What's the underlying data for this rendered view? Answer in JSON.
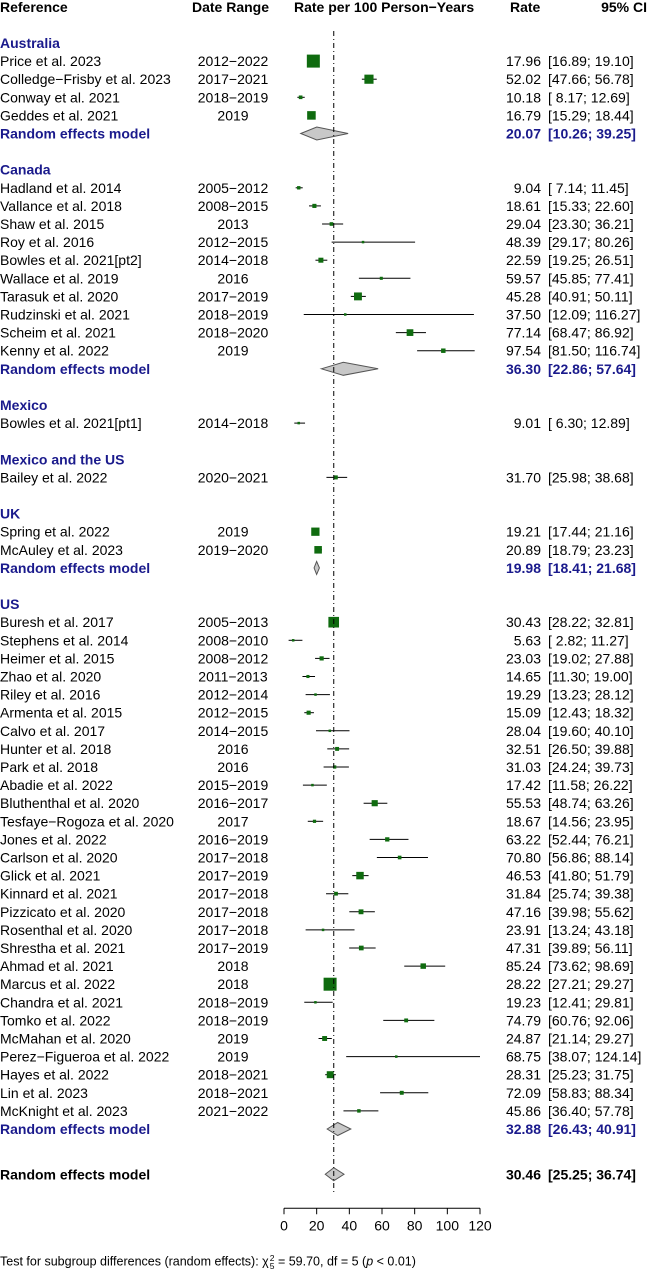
{
  "headers": {
    "reference": "Reference",
    "date_range": "Date Range",
    "rate_label": "Rate per 100 Person−Years",
    "rate": "Rate",
    "ci": "95% CI"
  },
  "chart_data": {
    "type": "forest",
    "xlim": [
      0,
      120
    ],
    "xticks": [
      "0",
      "20",
      "40",
      "60",
      "80",
      "100",
      "120"
    ],
    "reference_line": 30.46,
    "groups": [
      {
        "name": "Australia",
        "studies": [
          {
            "ref": "Price et al. 2023",
            "dates": "2012−2022",
            "rate": 17.96,
            "lo": 16.89,
            "hi": 19.1,
            "rate_text": "17.96",
            "ci_text": "[16.89; 19.10]"
          },
          {
            "ref": "Colledge−Frisby et al. 2023",
            "dates": "2017−2021",
            "rate": 52.02,
            "lo": 47.66,
            "hi": 56.78,
            "rate_text": "52.02",
            "ci_text": "[47.66; 56.78]"
          },
          {
            "ref": "Conway et al. 2021",
            "dates": "2018−2019",
            "rate": 10.18,
            "lo": 8.17,
            "hi": 12.69,
            "rate_text": "10.18",
            "ci_text": "[ 8.17; 12.69]"
          },
          {
            "ref": "Geddes et al. 2021",
            "dates": "2019",
            "rate": 16.79,
            "lo": 15.29,
            "hi": 18.44,
            "rate_text": "16.79",
            "ci_text": "[15.29; 18.44]"
          }
        ],
        "summary": {
          "label": "Random effects model",
          "rate": 20.07,
          "lo": 10.26,
          "hi": 39.25,
          "rate_text": "20.07",
          "ci_text": "[10.26; 39.25]"
        }
      },
      {
        "name": "Canada",
        "studies": [
          {
            "ref": "Hadland et al. 2014",
            "dates": "2005−2012",
            "rate": 9.04,
            "lo": 7.14,
            "hi": 11.45,
            "rate_text": "9.04",
            "ci_text": "[ 7.14; 11.45]"
          },
          {
            "ref": "Vallance et al. 2018",
            "dates": "2008−2015",
            "rate": 18.61,
            "lo": 15.33,
            "hi": 22.6,
            "rate_text": "18.61",
            "ci_text": "[15.33; 22.60]"
          },
          {
            "ref": "Shaw et al. 2015",
            "dates": "2013",
            "rate": 29.04,
            "lo": 23.3,
            "hi": 36.21,
            "rate_text": "29.04",
            "ci_text": "[23.30; 36.21]"
          },
          {
            "ref": "Roy et al. 2016",
            "dates": "2012−2015",
            "rate": 48.39,
            "lo": 29.17,
            "hi": 80.26,
            "rate_text": "48.39",
            "ci_text": "[29.17; 80.26]"
          },
          {
            "ref": "Bowles et al. 2021[pt2]",
            "dates": "2014−2018",
            "rate": 22.59,
            "lo": 19.25,
            "hi": 26.51,
            "rate_text": "22.59",
            "ci_text": "[19.25; 26.51]"
          },
          {
            "ref": "Wallace et al. 2019",
            "dates": "2016",
            "rate": 59.57,
            "lo": 45.85,
            "hi": 77.41,
            "rate_text": "59.57",
            "ci_text": "[45.85; 77.41]"
          },
          {
            "ref": "Tarasuk et al. 2020",
            "dates": "2017−2019",
            "rate": 45.28,
            "lo": 40.91,
            "hi": 50.11,
            "rate_text": "45.28",
            "ci_text": "[40.91; 50.11]"
          },
          {
            "ref": "Rudzinski et al. 2021",
            "dates": "2018−2019",
            "rate": 37.5,
            "lo": 12.09,
            "hi": 116.27,
            "rate_text": "37.50",
            "ci_text": "[12.09; 116.27]"
          },
          {
            "ref": "Scheim et al. 2021",
            "dates": "2018−2020",
            "rate": 77.14,
            "lo": 68.47,
            "hi": 86.92,
            "rate_text": "77.14",
            "ci_text": "[68.47; 86.92]"
          },
          {
            "ref": "Kenny et al. 2022",
            "dates": "2019",
            "rate": 97.54,
            "lo": 81.5,
            "hi": 116.74,
            "rate_text": "97.54",
            "ci_text": "[81.50; 116.74]"
          }
        ],
        "summary": {
          "label": "Random effects model",
          "rate": 36.3,
          "lo": 22.86,
          "hi": 57.64,
          "rate_text": "36.30",
          "ci_text": "[22.86; 57.64]"
        }
      },
      {
        "name": "Mexico",
        "studies": [
          {
            "ref": "Bowles et al. 2021[pt1]",
            "dates": "2014−2018",
            "rate": 9.01,
            "lo": 6.3,
            "hi": 12.89,
            "rate_text": "9.01",
            "ci_text": "[ 6.30; 12.89]"
          }
        ]
      },
      {
        "name": "Mexico and the US",
        "studies": [
          {
            "ref": "Bailey et al. 2022",
            "dates": "2020−2021",
            "rate": 31.7,
            "lo": 25.98,
            "hi": 38.68,
            "rate_text": "31.70",
            "ci_text": "[25.98; 38.68]"
          }
        ]
      },
      {
        "name": "UK",
        "studies": [
          {
            "ref": "Spring et al. 2022",
            "dates": "2019",
            "rate": 19.21,
            "lo": 17.44,
            "hi": 21.16,
            "rate_text": "19.21",
            "ci_text": "[17.44; 21.16]"
          },
          {
            "ref": "McAuley et al. 2023",
            "dates": "2019−2020",
            "rate": 20.89,
            "lo": 18.79,
            "hi": 23.23,
            "rate_text": "20.89",
            "ci_text": "[18.79; 23.23]"
          }
        ],
        "summary": {
          "label": "Random effects model",
          "rate": 19.98,
          "lo": 18.41,
          "hi": 21.68,
          "rate_text": "19.98",
          "ci_text": "[18.41; 21.68]"
        }
      },
      {
        "name": "US",
        "studies": [
          {
            "ref": "Buresh et al. 2017",
            "dates": "2005−2013",
            "rate": 30.43,
            "lo": 28.22,
            "hi": 32.81,
            "rate_text": "30.43",
            "ci_text": "[28.22; 32.81]"
          },
          {
            "ref": "Stephens et al. 2014",
            "dates": "2008−2010",
            "rate": 5.63,
            "lo": 2.82,
            "hi": 11.27,
            "rate_text": "5.63",
            "ci_text": "[ 2.82; 11.27]"
          },
          {
            "ref": "Heimer et al. 2015",
            "dates": "2008−2012",
            "rate": 23.03,
            "lo": 19.02,
            "hi": 27.88,
            "rate_text": "23.03",
            "ci_text": "[19.02; 27.88]"
          },
          {
            "ref": "Zhao et al. 2020",
            "dates": "2011−2013",
            "rate": 14.65,
            "lo": 11.3,
            "hi": 19.0,
            "rate_text": "14.65",
            "ci_text": "[11.30; 19.00]"
          },
          {
            "ref": "Riley et al. 2016",
            "dates": "2012−2014",
            "rate": 19.29,
            "lo": 13.23,
            "hi": 28.12,
            "rate_text": "19.29",
            "ci_text": "[13.23; 28.12]"
          },
          {
            "ref": "Armenta et al. 2015",
            "dates": "2012−2015",
            "rate": 15.09,
            "lo": 12.43,
            "hi": 18.32,
            "rate_text": "15.09",
            "ci_text": "[12.43; 18.32]"
          },
          {
            "ref": "Calvo et al. 2017",
            "dates": "2014−2015",
            "rate": 28.04,
            "lo": 19.6,
            "hi": 40.1,
            "rate_text": "28.04",
            "ci_text": "[19.60; 40.10]"
          },
          {
            "ref": "Hunter et al. 2018",
            "dates": "2016",
            "rate": 32.51,
            "lo": 26.5,
            "hi": 39.88,
            "rate_text": "32.51",
            "ci_text": "[26.50; 39.88]"
          },
          {
            "ref": "Park et al. 2018",
            "dates": "2016",
            "rate": 31.03,
            "lo": 24.24,
            "hi": 39.73,
            "rate_text": "31.03",
            "ci_text": "[24.24; 39.73]"
          },
          {
            "ref": "Abadie et al. 2022",
            "dates": "2015−2019",
            "rate": 17.42,
            "lo": 11.58,
            "hi": 26.22,
            "rate_text": "17.42",
            "ci_text": "[11.58; 26.22]"
          },
          {
            "ref": "Bluthenthal et al. 2020",
            "dates": "2016−2017",
            "rate": 55.53,
            "lo": 48.74,
            "hi": 63.26,
            "rate_text": "55.53",
            "ci_text": "[48.74; 63.26]"
          },
          {
            "ref": "Tesfaye−Rogoza et al. 2020",
            "dates": "2017",
            "rate": 18.67,
            "lo": 14.56,
            "hi": 23.95,
            "rate_text": "18.67",
            "ci_text": "[14.56; 23.95]"
          },
          {
            "ref": "Jones et al. 2022",
            "dates": "2016−2019",
            "rate": 63.22,
            "lo": 52.44,
            "hi": 76.21,
            "rate_text": "63.22",
            "ci_text": "[52.44; 76.21]"
          },
          {
            "ref": "Carlson et al. 2020",
            "dates": "2017−2018",
            "rate": 70.8,
            "lo": 56.86,
            "hi": 88.14,
            "rate_text": "70.80",
            "ci_text": "[56.86; 88.14]"
          },
          {
            "ref": "Glick et al. 2021",
            "dates": "2017−2019",
            "rate": 46.53,
            "lo": 41.8,
            "hi": 51.79,
            "rate_text": "46.53",
            "ci_text": "[41.80; 51.79]"
          },
          {
            "ref": "Kinnard et al. 2021",
            "dates": "2017−2018",
            "rate": 31.84,
            "lo": 25.74,
            "hi": 39.38,
            "rate_text": "31.84",
            "ci_text": "[25.74; 39.38]"
          },
          {
            "ref": "Pizzicato et al. 2020",
            "dates": "2017−2018",
            "rate": 47.16,
            "lo": 39.98,
            "hi": 55.62,
            "rate_text": "47.16",
            "ci_text": "[39.98; 55.62]"
          },
          {
            "ref": "Rosenthal et al. 2020",
            "dates": "2017−2018",
            "rate": 23.91,
            "lo": 13.24,
            "hi": 43.18,
            "rate_text": "23.91",
            "ci_text": "[13.24; 43.18]"
          },
          {
            "ref": "Shrestha et al. 2021",
            "dates": "2017−2019",
            "rate": 47.31,
            "lo": 39.89,
            "hi": 56.11,
            "rate_text": "47.31",
            "ci_text": "[39.89; 56.11]"
          },
          {
            "ref": "Ahmad et al. 2021",
            "dates": "2018",
            "rate": 85.24,
            "lo": 73.62,
            "hi": 98.69,
            "rate_text": "85.24",
            "ci_text": "[73.62; 98.69]"
          },
          {
            "ref": "Marcus et al. 2022",
            "dates": "2018",
            "rate": 28.22,
            "lo": 27.21,
            "hi": 29.27,
            "rate_text": "28.22",
            "ci_text": "[27.21; 29.27]"
          },
          {
            "ref": "Chandra et al. 2021",
            "dates": "2018−2019",
            "rate": 19.23,
            "lo": 12.41,
            "hi": 29.81,
            "rate_text": "19.23",
            "ci_text": "[12.41; 29.81]"
          },
          {
            "ref": "Tomko et al. 2022",
            "dates": "2018−2019",
            "rate": 74.79,
            "lo": 60.76,
            "hi": 92.06,
            "rate_text": "74.79",
            "ci_text": "[60.76; 92.06]"
          },
          {
            "ref": "McMahan et al. 2020",
            "dates": "2019",
            "rate": 24.87,
            "lo": 21.14,
            "hi": 29.27,
            "rate_text": "24.87",
            "ci_text": "[21.14; 29.27]"
          },
          {
            "ref": "Perez−Figueroa et al. 2022",
            "dates": "2019",
            "rate": 68.75,
            "lo": 38.07,
            "hi": 124.14,
            "rate_text": "68.75",
            "ci_text": "[38.07; 124.14]"
          },
          {
            "ref": "Hayes et al. 2022",
            "dates": "2018−2021",
            "rate": 28.31,
            "lo": 25.23,
            "hi": 31.75,
            "rate_text": "28.31",
            "ci_text": "[25.23; 31.75]"
          },
          {
            "ref": "Lin et al. 2023",
            "dates": "2018−2021",
            "rate": 72.09,
            "lo": 58.83,
            "hi": 88.34,
            "rate_text": "72.09",
            "ci_text": "[58.83; 88.34]"
          },
          {
            "ref": "McKnight et al. 2023",
            "dates": "2021−2022",
            "rate": 45.86,
            "lo": 36.4,
            "hi": 57.78,
            "rate_text": "45.86",
            "ci_text": "[36.40; 57.78]"
          }
        ],
        "summary": {
          "label": "Random effects model",
          "rate": 32.88,
          "lo": 26.43,
          "hi": 40.91,
          "rate_text": "32.88",
          "ci_text": "[26.43; 40.91]"
        }
      }
    ],
    "overall": {
      "label": "Random effects model",
      "rate": 30.46,
      "lo": 25.25,
      "hi": 36.74,
      "rate_text": "30.46",
      "ci_text": "[25.25; 36.74]"
    }
  },
  "footnote": {
    "prefix": "Test for subgroup differences (random effects): χ",
    "sup": "2",
    "sub": "5",
    "suffix": " = 59.70, df = 5 (",
    "p": "p",
    "p_suffix": " < 0.01)"
  },
  "colors": {
    "group_heading": "#1a1a8c",
    "study_square": "#0f6b0f",
    "diamond_fill": "#c8c8c8",
    "diamond_stroke": "#555555",
    "ci_line": "#000000"
  }
}
